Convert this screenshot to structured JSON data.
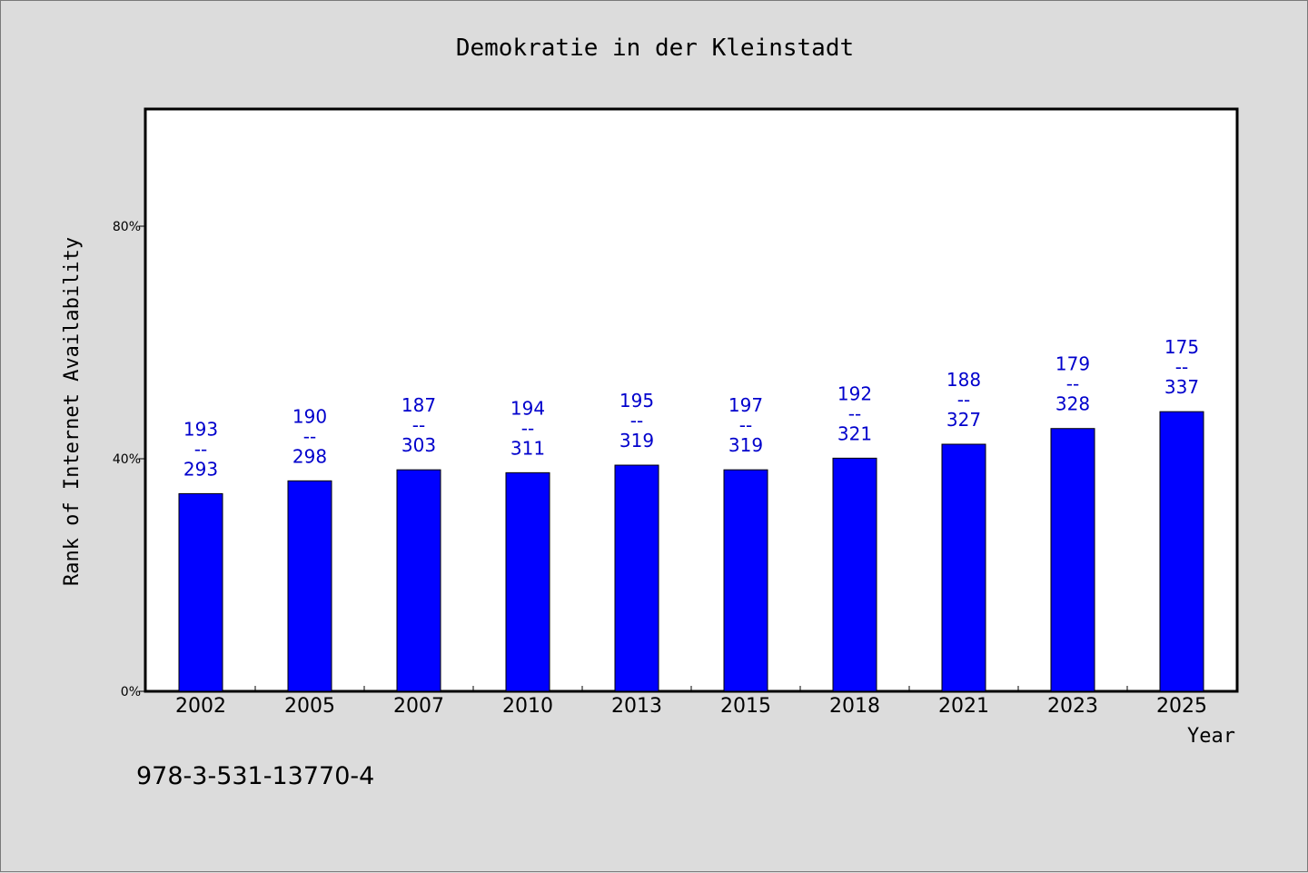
{
  "chart_data": {
    "type": "bar",
    "title": "Demokratie in der Kleinstadt",
    "xlabel": "Year",
    "ylabel": "Rank of Internet Availability",
    "categories": [
      "2002",
      "2005",
      "2007",
      "2010",
      "2013",
      "2015",
      "2018",
      "2021",
      "2023",
      "2025"
    ],
    "values": [
      34,
      36.2,
      38.1,
      37.6,
      38.9,
      38.1,
      40.1,
      42.5,
      45.2,
      48.1
    ],
    "data_labels": [
      [
        "193",
        "--",
        "293"
      ],
      [
        "190",
        "--",
        "298"
      ],
      [
        "187",
        "--",
        "303"
      ],
      [
        "194",
        "--",
        "311"
      ],
      [
        "195",
        "--",
        "319"
      ],
      [
        "197",
        "--",
        "319"
      ],
      [
        "192",
        "--",
        "321"
      ],
      [
        "188",
        "--",
        "327"
      ],
      [
        "179",
        "--",
        "328"
      ],
      [
        "175",
        "--",
        "337"
      ]
    ],
    "yticks": [
      0,
      40,
      80
    ],
    "ytick_labels": [
      "0%",
      "40%",
      "80%"
    ],
    "ylim": [
      0,
      100
    ],
    "grid": false,
    "colors": {
      "bar": "#0000ff",
      "label": "#0000cc",
      "background": "#dcdcdc",
      "plot_bg": "#ffffff"
    }
  },
  "footer": {
    "isbn": "978-3-531-13770-4"
  }
}
